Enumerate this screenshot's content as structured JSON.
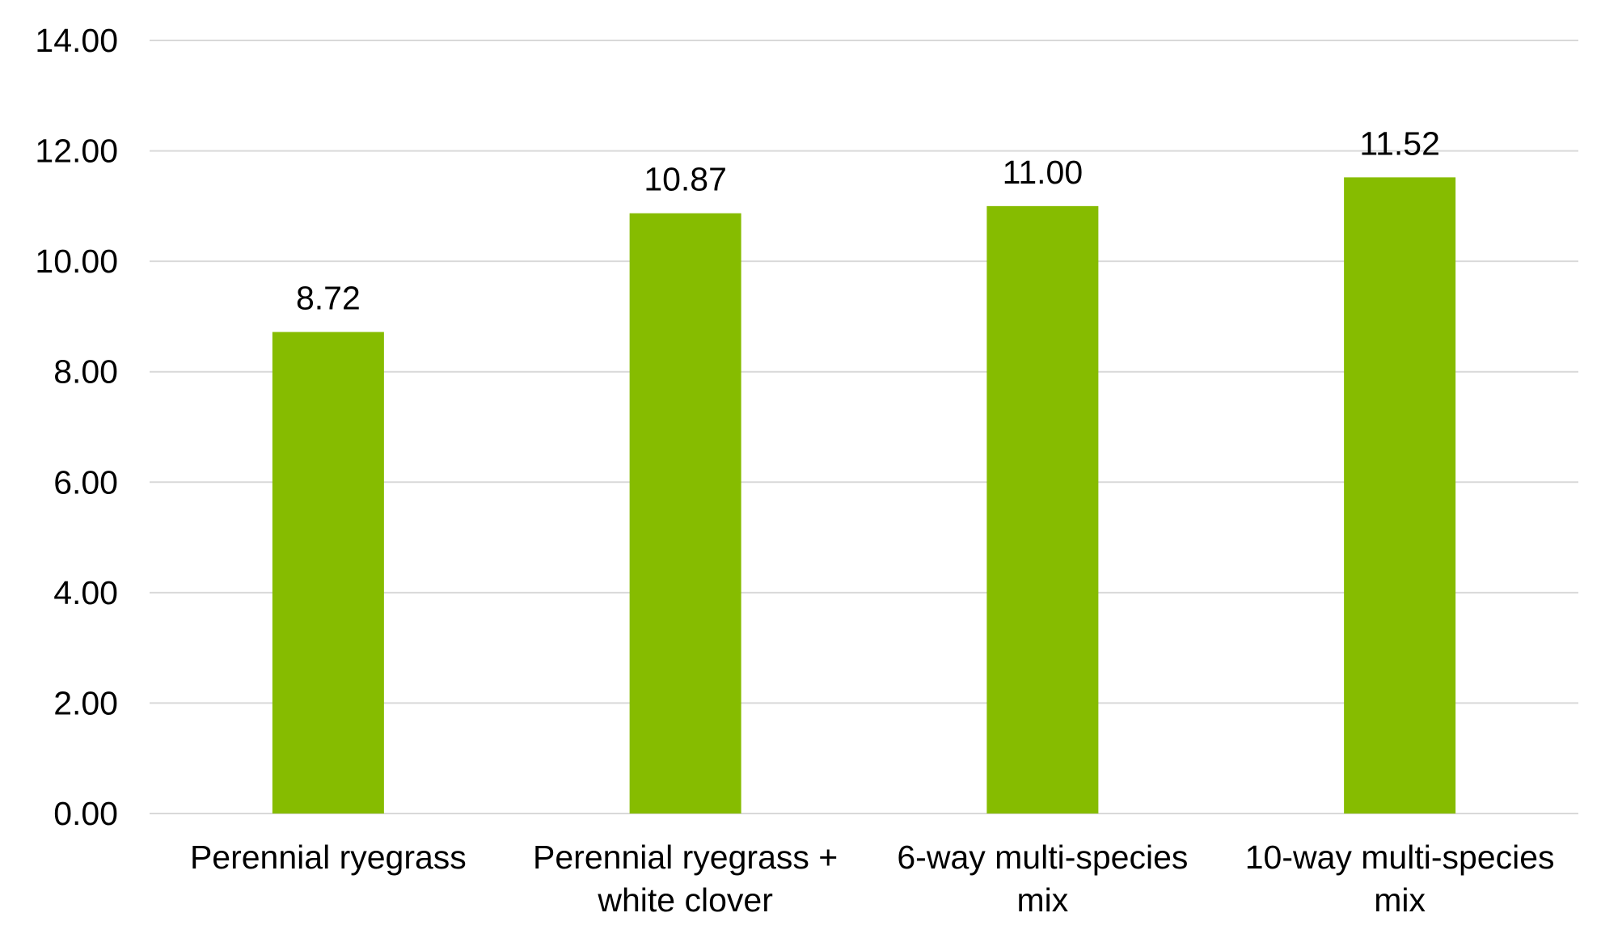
{
  "chart_data": {
    "type": "bar",
    "title": "",
    "xlabel": "",
    "ylabel": "",
    "categories": [
      [
        "Perennial ryegrass"
      ],
      [
        "Perennial ryegrass +",
        "white clover"
      ],
      [
        "6-way multi-species",
        "mix"
      ],
      [
        "10-way multi-species",
        "mix"
      ]
    ],
    "values": [
      8.72,
      10.87,
      11.0,
      11.52
    ],
    "value_labels": [
      "8.72",
      "10.87",
      "11.00",
      "11.52"
    ],
    "ylim": [
      0,
      14
    ],
    "yticks": [
      0,
      2,
      4,
      6,
      8,
      10,
      12,
      14
    ],
    "ytick_labels": [
      "0.00",
      "2.00",
      "4.00",
      "6.00",
      "8.00",
      "10.00",
      "12.00",
      "14.00"
    ],
    "grid": true,
    "legend": "none",
    "bar_color": "#86bc00",
    "grid_color": "#d9d9d9"
  }
}
